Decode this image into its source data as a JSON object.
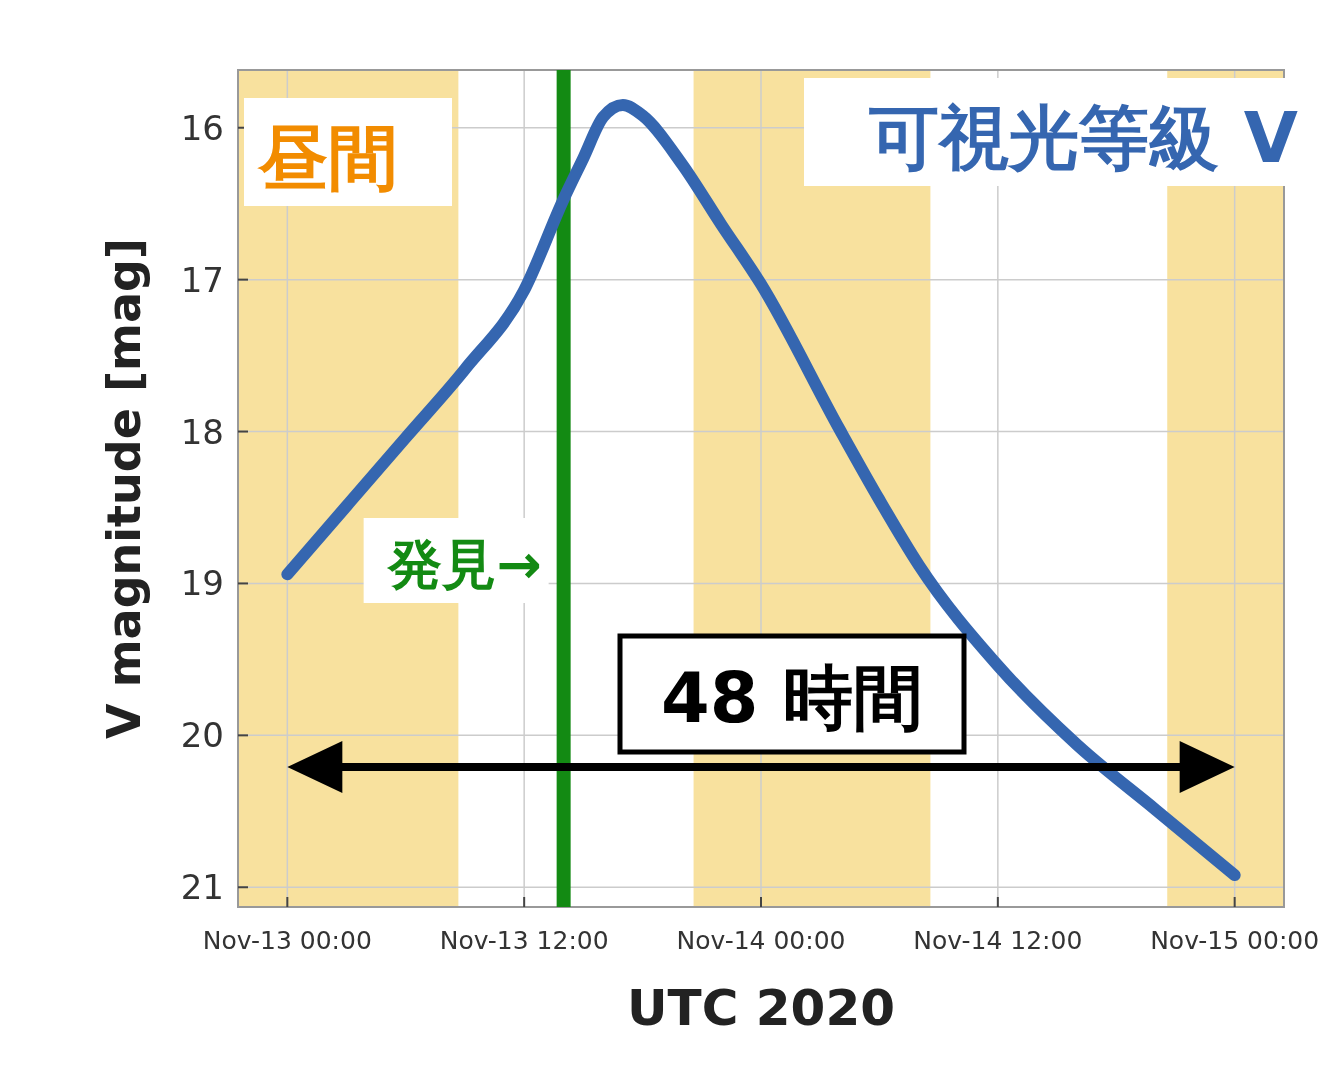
{
  "chart_data": {
    "type": "line",
    "xlabel": "UTC 2020",
    "ylabel": "V magnitude [mag]",
    "x": [
      "2020-11-13T00:00",
      "2020-11-13T03:00",
      "2020-11-13T06:00",
      "2020-11-13T09:00",
      "2020-11-13T12:00",
      "2020-11-13T14:00",
      "2020-11-13T15:00",
      "2020-11-13T16:00",
      "2020-11-13T17:00",
      "2020-11-13T18:00",
      "2020-11-13T20:00",
      "2020-11-13T22:00",
      "2020-11-14T00:00",
      "2020-11-14T04:00",
      "2020-11-14T06:00",
      "2020-11-14T08:00",
      "2020-11-14T12:00",
      "2020-11-14T16:00",
      "2020-11-14T20:00",
      "2020-11-15T00:00"
    ],
    "series": [
      {
        "name": "可視光等級 V",
        "color": "#3566b0",
        "values": [
          18.94,
          18.49,
          18.04,
          17.59,
          17.07,
          16.47,
          16.2,
          15.93,
          15.85,
          15.92,
          16.24,
          16.64,
          17.03,
          17.99,
          18.45,
          18.88,
          19.54,
          20.06,
          20.49,
          20.92
        ]
      }
    ],
    "xlim": [
      "2020-11-12T21:30",
      "2020-11-15T02:30"
    ],
    "xticks": [
      {
        "value": "2020-11-13T00:00",
        "label": "Nov-13 00:00"
      },
      {
        "value": "2020-11-13T12:00",
        "label": "Nov-13 12:00"
      },
      {
        "value": "2020-11-14T00:00",
        "label": "Nov-14 00:00"
      },
      {
        "value": "2020-11-14T12:00",
        "label": "Nov-14 12:00"
      },
      {
        "value": "2020-11-15T00:00",
        "label": "Nov-15 00:00"
      }
    ],
    "ylim": [
      21.13,
      15.62
    ],
    "yticks": [
      16,
      17,
      18,
      19,
      20,
      21
    ],
    "grid": true,
    "legend": "top right",
    "line_style": "solid",
    "bands": [
      {
        "axis": "x",
        "from": "2020-11-12T21:30",
        "to": "2020-11-13T08:40",
        "label": "昼間",
        "color": "#f8e19e"
      },
      {
        "axis": "x",
        "from": "2020-11-13T20:35",
        "to": "2020-11-14T08:35",
        "color": "#f8e19e"
      },
      {
        "axis": "x",
        "from": "2020-11-14T20:35",
        "to": "2020-11-15T02:30",
        "color": "#f8e19e"
      }
    ],
    "ref_lines": [
      {
        "axis": "x",
        "value": "2020-11-13T14:00",
        "label": "発見→",
        "color": "#138a13"
      }
    ],
    "annotations": [
      "48 時間"
    ]
  }
}
